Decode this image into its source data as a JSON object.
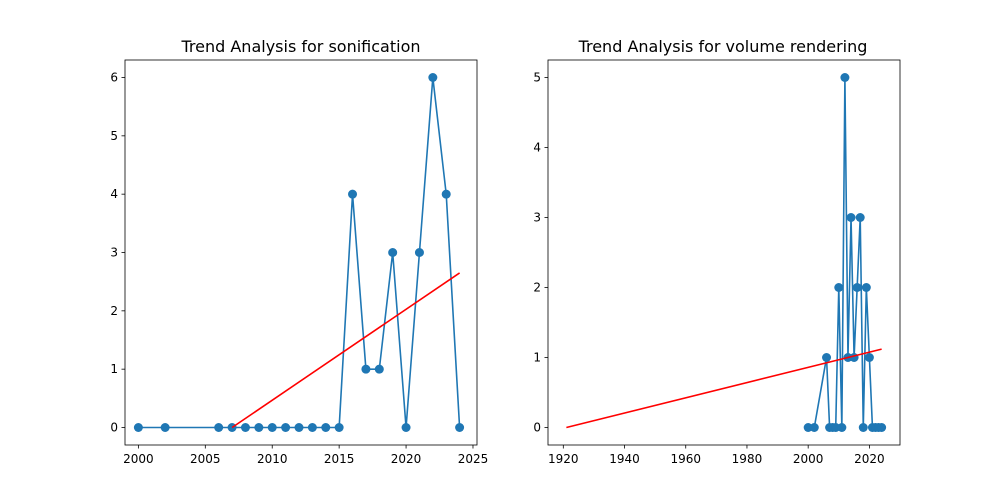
{
  "chart_data": [
    {
      "type": "line",
      "title": "Trend Analysis for sonification",
      "xlabel": "",
      "ylabel": "",
      "xlim": [
        1999,
        2025.3
      ],
      "ylim": [
        -0.3,
        6.3
      ],
      "xticks": [
        2000,
        2005,
        2010,
        2015,
        2020,
        2025
      ],
      "yticks": [
        0,
        1,
        2,
        3,
        4,
        5,
        6
      ],
      "grid": false,
      "legend": "none",
      "series": [
        {
          "role": "data",
          "style": "line-with-markers",
          "color": "#1f77b4",
          "x": [
            2000,
            2002,
            2006,
            2007,
            2008,
            2009,
            2010,
            2011,
            2012,
            2013,
            2014,
            2015,
            2016,
            2017,
            2018,
            2019,
            2020,
            2021,
            2022,
            2023,
            2024
          ],
          "y": [
            0,
            0,
            0,
            0,
            0,
            0,
            0,
            0,
            0,
            0,
            0,
            0,
            4,
            1,
            1,
            3,
            0,
            3,
            6,
            4,
            0
          ]
        },
        {
          "role": "trend",
          "style": "line",
          "color": "#ff0000",
          "x": [
            2007,
            2024
          ],
          "y": [
            0,
            2.65
          ]
        }
      ]
    },
    {
      "type": "line",
      "title": "Trend Analysis for volume rendering",
      "xlabel": "",
      "ylabel": "",
      "xlim": [
        1915,
        2030
      ],
      "ylim": [
        -0.25,
        5.25
      ],
      "xticks": [
        1920,
        1940,
        1960,
        1980,
        2000,
        2020
      ],
      "yticks": [
        0,
        1,
        2,
        3,
        4,
        5
      ],
      "grid": false,
      "legend": "none",
      "series": [
        {
          "role": "data",
          "style": "line-with-markers",
          "color": "#1f77b4",
          "x": [
            2000,
            2002,
            2006,
            2007,
            2008,
            2009,
            2010,
            2011,
            2012,
            2013,
            2014,
            2015,
            2016,
            2017,
            2018,
            2019,
            2020,
            2021,
            2022,
            2023,
            2024
          ],
          "y": [
            0,
            0,
            1,
            0,
            0,
            0,
            2,
            0,
            5,
            1,
            3,
            1,
            2,
            3,
            0,
            2,
            1,
            0,
            0,
            0,
            0
          ]
        },
        {
          "role": "trend",
          "style": "line",
          "color": "#ff0000",
          "x": [
            1921,
            2024
          ],
          "y": [
            0,
            1.12
          ]
        }
      ]
    }
  ]
}
